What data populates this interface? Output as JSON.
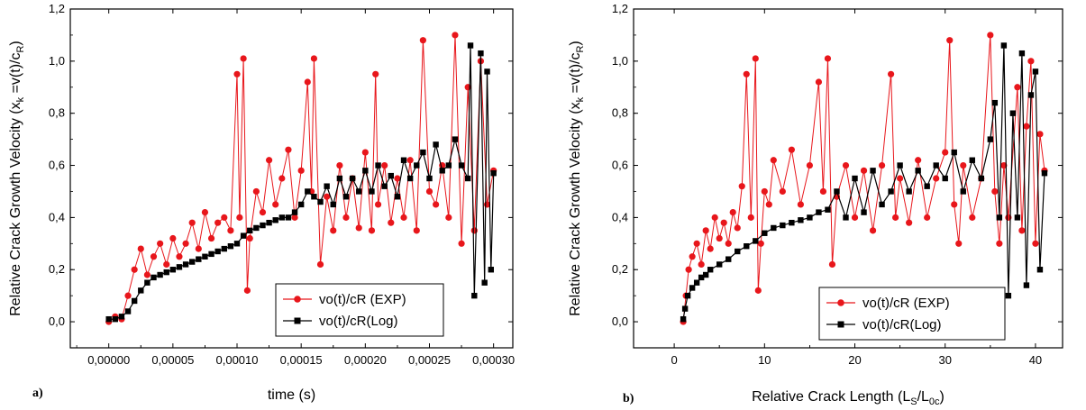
{
  "colors": {
    "exp": "#e8161b",
    "log": "#000000",
    "frame": "#000000"
  },
  "chart_data": [
    {
      "panel_label": "a)",
      "type": "line",
      "xlabel": "time (s)",
      "ylabel_main": "Relative Crack Growth Velocity (x",
      "ylabel_sub1": "k",
      "ylabel_mid": " =v(t)/c",
      "ylabel_sub2": "R",
      "ylabel_end": ")",
      "xlim": [
        -3e-05,
        0.000315
      ],
      "ylim": [
        -0.1,
        1.2
      ],
      "xticks": [
        0,
        5e-05,
        0.0001,
        0.00015,
        0.0002,
        0.00025,
        0.0003
      ],
      "xtick_labels": [
        "0,00000",
        "0,00005",
        "0,00010",
        "0,00015",
        "0,00020",
        "0,00025",
        "0,00030"
      ],
      "yticks": [
        0,
        0.2,
        0.4,
        0.6,
        0.8,
        1.0,
        1.2
      ],
      "ytick_labels": [
        "0,0",
        "0,2",
        "0,4",
        "0,6",
        "0,8",
        "1,0",
        "1,2"
      ],
      "legend": [
        "vo(t)/cR (EXP)",
        "vo(t)/cR(Log)"
      ],
      "series": [
        {
          "name": "vo(t)/cR (EXP)",
          "x": [
            0,
            5e-06,
            1e-05,
            1.5e-05,
            2e-05,
            2.5e-05,
            3e-05,
            3.5e-05,
            4e-05,
            4.5e-05,
            5e-05,
            5.5e-05,
            6e-05,
            6.5e-05,
            7e-05,
            7.5e-05,
            8e-05,
            8.5e-05,
            9e-05,
            9.5e-05,
            0.0001,
            0.000102,
            0.000105,
            0.000108,
            0.00011,
            0.000115,
            0.00012,
            0.000125,
            0.00013,
            0.000135,
            0.00014,
            0.000145,
            0.00015,
            0.000155,
            0.000158,
            0.00016,
            0.000165,
            0.00017,
            0.000175,
            0.00018,
            0.000185,
            0.00019,
            0.000195,
            0.0002,
            0.000205,
            0.000208,
            0.00021,
            0.000215,
            0.00022,
            0.000225,
            0.00023,
            0.000235,
            0.00024,
            0.000245,
            0.00025,
            0.000255,
            0.00026,
            0.000265,
            0.00027,
            0.000275,
            0.00028,
            0.000285,
            0.00029,
            0.000295,
            0.0003
          ],
          "y": [
            0.0,
            0.02,
            0.01,
            0.1,
            0.2,
            0.28,
            0.18,
            0.25,
            0.3,
            0.22,
            0.32,
            0.25,
            0.3,
            0.38,
            0.28,
            0.42,
            0.32,
            0.38,
            0.4,
            0.35,
            0.95,
            0.4,
            1.01,
            0.12,
            0.32,
            0.5,
            0.42,
            0.62,
            0.45,
            0.55,
            0.66,
            0.4,
            0.58,
            0.92,
            0.5,
            1.01,
            0.22,
            0.48,
            0.35,
            0.6,
            0.4,
            0.55,
            0.36,
            0.65,
            0.35,
            0.95,
            0.45,
            0.6,
            0.38,
            0.55,
            0.4,
            0.62,
            0.35,
            1.08,
            0.5,
            0.45,
            0.6,
            0.4,
            1.1,
            0.3,
            0.9,
            0.35,
            1.0,
            0.45,
            0.58
          ]
        },
        {
          "name": "vo(t)/cR(Log)",
          "x": [
            0,
            5e-06,
            1e-05,
            1.5e-05,
            2e-05,
            2.5e-05,
            3e-05,
            3.5e-05,
            4e-05,
            4.5e-05,
            5e-05,
            5.5e-05,
            6e-05,
            6.5e-05,
            7e-05,
            7.5e-05,
            8e-05,
            8.5e-05,
            9e-05,
            9.5e-05,
            0.0001,
            0.000105,
            0.00011,
            0.000115,
            0.00012,
            0.000125,
            0.00013,
            0.000135,
            0.00014,
            0.000145,
            0.00015,
            0.000155,
            0.00016,
            0.000165,
            0.00017,
            0.000175,
            0.00018,
            0.000185,
            0.00019,
            0.000195,
            0.0002,
            0.000205,
            0.00021,
            0.000215,
            0.00022,
            0.000225,
            0.00023,
            0.000235,
            0.00024,
            0.000245,
            0.00025,
            0.000255,
            0.00026,
            0.000265,
            0.00027,
            0.000275,
            0.00028,
            0.000282,
            0.000285,
            0.00029,
            0.000293,
            0.000295,
            0.000298,
            0.0003
          ],
          "y": [
            0.01,
            0.01,
            0.02,
            0.04,
            0.08,
            0.12,
            0.15,
            0.17,
            0.18,
            0.19,
            0.2,
            0.21,
            0.22,
            0.23,
            0.24,
            0.25,
            0.26,
            0.27,
            0.28,
            0.29,
            0.3,
            0.33,
            0.35,
            0.36,
            0.37,
            0.38,
            0.39,
            0.4,
            0.4,
            0.42,
            0.45,
            0.5,
            0.48,
            0.46,
            0.52,
            0.45,
            0.55,
            0.48,
            0.55,
            0.5,
            0.58,
            0.5,
            0.6,
            0.52,
            0.56,
            0.48,
            0.62,
            0.55,
            0.6,
            0.65,
            0.55,
            0.68,
            0.58,
            0.6,
            0.7,
            0.6,
            0.55,
            1.06,
            0.1,
            1.03,
            0.15,
            0.96,
            0.2,
            0.57
          ]
        }
      ]
    },
    {
      "panel_label": "b)",
      "type": "line",
      "xlabel_main": "Relative Crack Length (L",
      "xlabel_sub1": "S",
      "xlabel_mid": "/L",
      "xlabel_sub2": "0c",
      "xlabel_end": ")",
      "ylabel_main": "Relative Crack Growth Velocity (x",
      "ylabel_sub1": "k",
      "ylabel_mid": " =v(t)/c",
      "ylabel_sub2": "R",
      "ylabel_end": ")",
      "xlim": [
        -4.5,
        43
      ],
      "ylim": [
        -0.1,
        1.2
      ],
      "xticks": [
        0,
        10,
        20,
        30,
        40
      ],
      "xtick_labels": [
        "0",
        "10",
        "20",
        "30",
        "40"
      ],
      "yticks": [
        0,
        0.2,
        0.4,
        0.6,
        0.8,
        1.0,
        1.2
      ],
      "ytick_labels": [
        "0,0",
        "0,2",
        "0,4",
        "0,6",
        "0,8",
        "1,0",
        "1,2"
      ],
      "legend": [
        "vo(t)/cR (EXP)",
        "vo(t)/cR(Log)"
      ],
      "series": [
        {
          "name": "vo(t)/cR (EXP)",
          "x": [
            1,
            1.3,
            1.6,
            2,
            2.5,
            3,
            3.5,
            4,
            4.5,
            5,
            5.5,
            6,
            6.5,
            7,
            7.5,
            8,
            8.5,
            9,
            9.3,
            9.6,
            10,
            10.5,
            11,
            12,
            13,
            14,
            15,
            16,
            16.5,
            17,
            17.5,
            18,
            19,
            20,
            21,
            22,
            23,
            24,
            24.5,
            25,
            26,
            27,
            28,
            29,
            30,
            30.5,
            31,
            31.5,
            32,
            33,
            34,
            35,
            35.5,
            36,
            36.5,
            37,
            38,
            38.5,
            39,
            39.5,
            40,
            40.5,
            41
          ],
          "y": [
            0.0,
            0.1,
            0.2,
            0.25,
            0.3,
            0.22,
            0.35,
            0.28,
            0.4,
            0.32,
            0.38,
            0.3,
            0.42,
            0.36,
            0.52,
            0.95,
            0.4,
            1.01,
            0.12,
            0.3,
            0.5,
            0.45,
            0.62,
            0.5,
            0.66,
            0.45,
            0.6,
            0.92,
            0.5,
            1.01,
            0.22,
            0.48,
            0.6,
            0.4,
            0.58,
            0.35,
            0.6,
            0.95,
            0.4,
            0.55,
            0.38,
            0.62,
            0.4,
            0.55,
            0.65,
            1.08,
            0.45,
            0.3,
            0.6,
            0.4,
            0.55,
            1.1,
            0.5,
            0.3,
            0.6,
            0.4,
            0.9,
            0.35,
            0.75,
            1.0,
            0.3,
            0.72,
            0.58
          ]
        },
        {
          "name": "vo(t)/cR(Log)",
          "x": [
            1,
            1.2,
            1.5,
            2,
            2.5,
            3,
            3.5,
            4,
            5,
            6,
            7,
            8,
            9,
            10,
            11,
            12,
            13,
            14,
            15,
            16,
            17,
            18,
            19,
            20,
            21,
            22,
            23,
            24,
            25,
            26,
            27,
            28,
            29,
            30,
            31,
            32,
            33,
            34,
            35,
            35.5,
            36,
            36.5,
            37,
            37.5,
            38,
            38.5,
            39,
            39.5,
            40,
            40.5,
            41
          ],
          "y": [
            0.01,
            0.05,
            0.1,
            0.13,
            0.15,
            0.17,
            0.18,
            0.2,
            0.22,
            0.24,
            0.27,
            0.29,
            0.31,
            0.34,
            0.36,
            0.37,
            0.38,
            0.39,
            0.4,
            0.42,
            0.43,
            0.5,
            0.4,
            0.55,
            0.42,
            0.58,
            0.45,
            0.5,
            0.6,
            0.5,
            0.58,
            0.52,
            0.6,
            0.55,
            0.65,
            0.5,
            0.62,
            0.55,
            0.7,
            0.84,
            0.4,
            1.06,
            0.1,
            0.8,
            0.4,
            1.03,
            0.14,
            0.87,
            0.96,
            0.2,
            0.57
          ]
        }
      ]
    }
  ]
}
